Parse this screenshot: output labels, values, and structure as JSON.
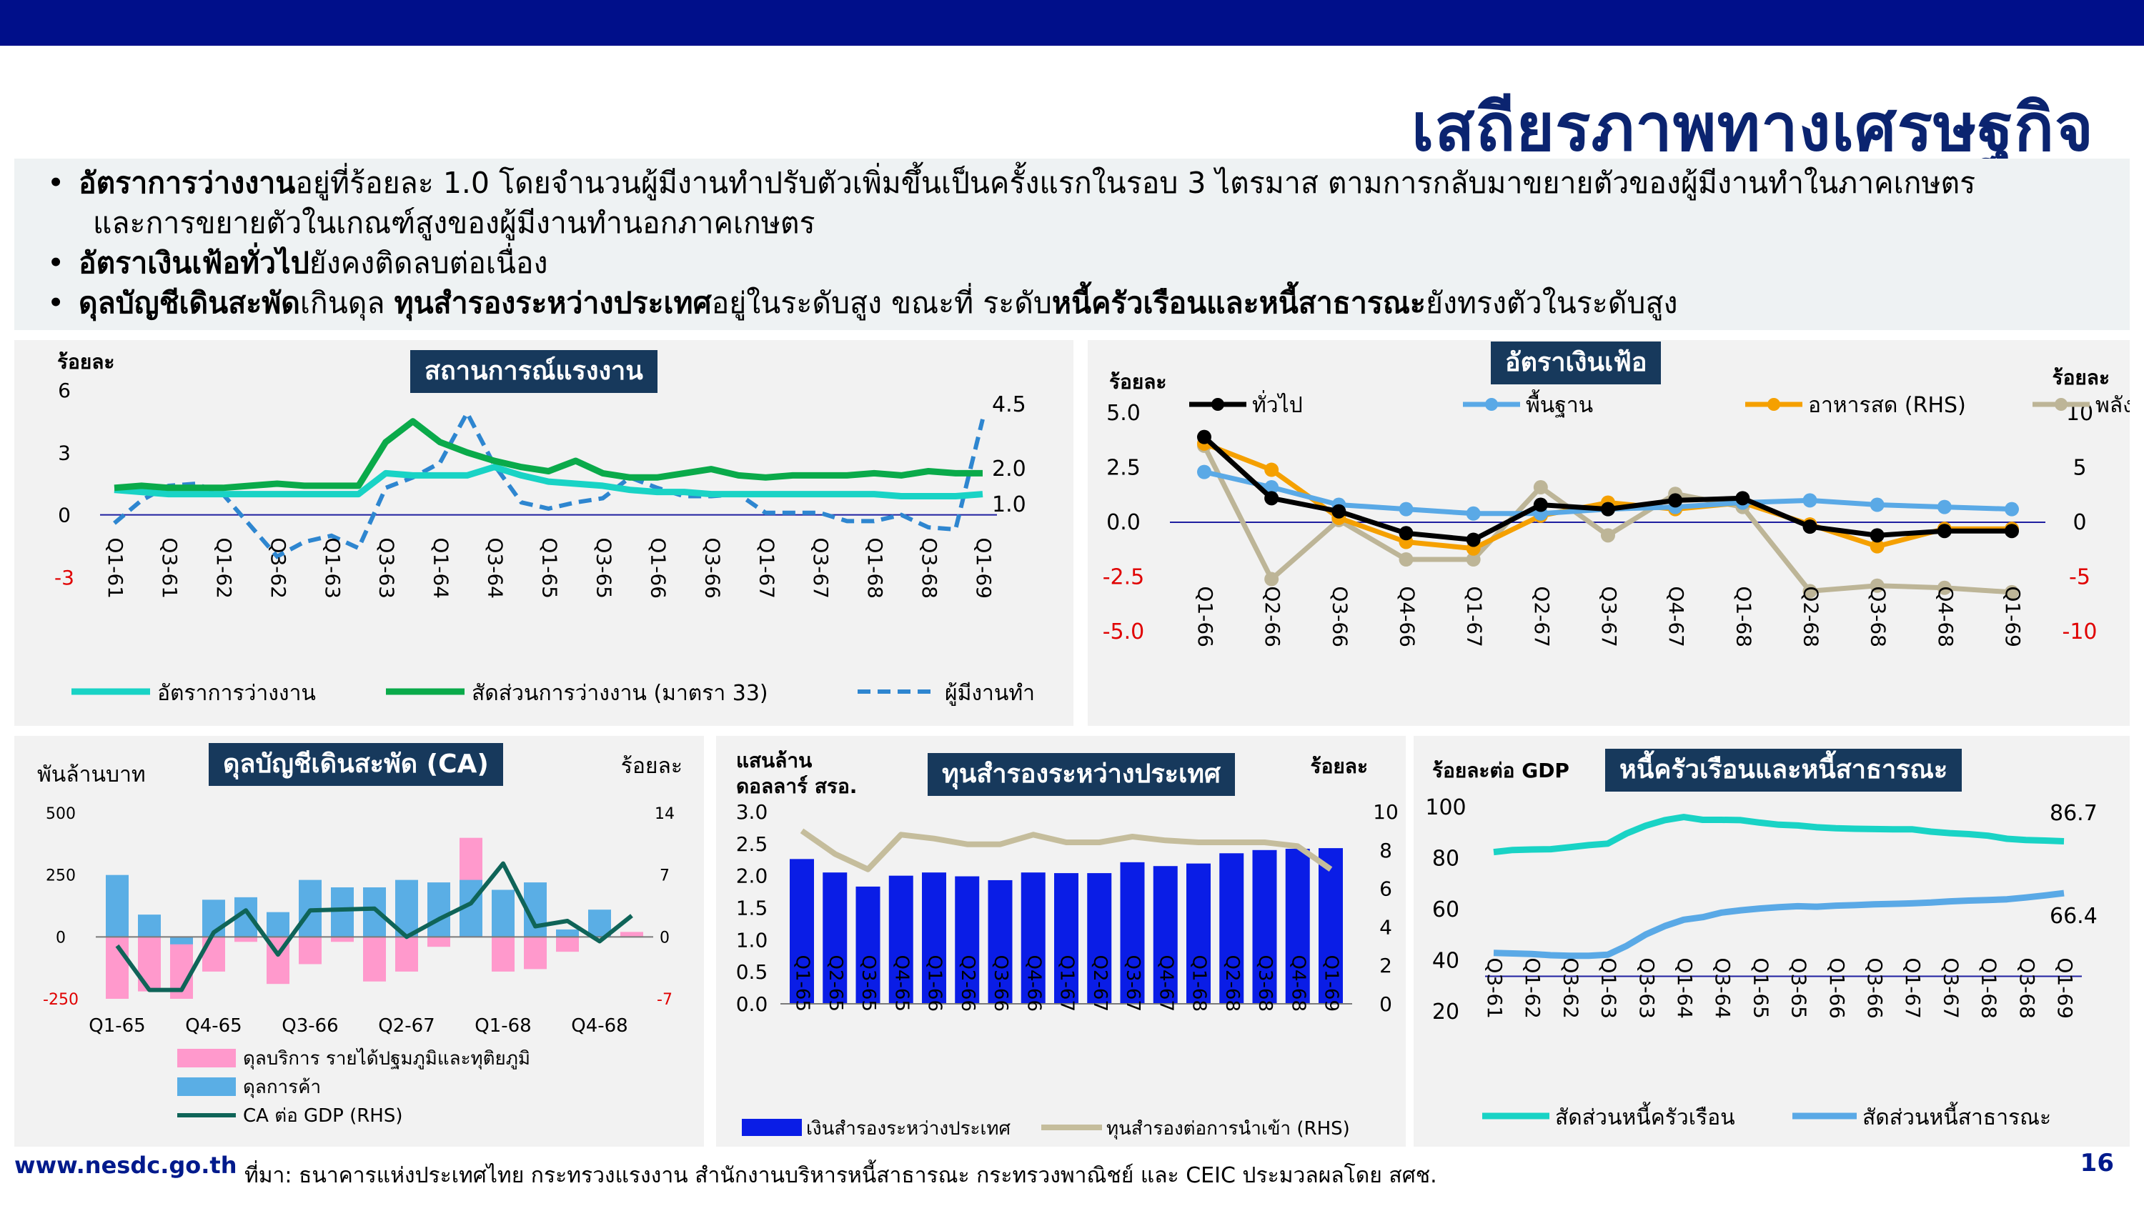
{
  "header": {
    "title": "เสถียรภาพทางเศรษฐกิจ"
  },
  "bullets": [
    {
      "bold": "อัตราการว่างงาน",
      "text": "อยู่ที่ร้อยละ 1.0 โดยจำนวนผู้มีงานทำปรับตัวเพิ่มขึ้นเป็นครั้งแรกในรอบ 3 ไตรมาส ตามการกลับมาขยายตัวของผู้มีงานทำในภาคเกษตร"
    },
    {
      "bold": "",
      "text": "และการขยายตัวในเกณฑ์สูงของผู้มีงานทำนอกภาคเกษตร"
    },
    {
      "bold": "อัตราเงินเฟ้อทั่วไป",
      "text": "ยังคงติดลบต่อเนื่อง"
    },
    {
      "b1": "ดุลบัญชีเดินสะพัด",
      "t1": "เกินดุล ",
      "b2": "ทุนสำรองระหว่างประเทศ",
      "t2": "อยู่ในระดับสูง ขณะที่ ระดับ",
      "b3": "หนี้ครัวเรือนและหนี้สาธารณะ",
      "t3": "ยังทรงตัวในระดับสูง"
    }
  ],
  "footer": {
    "url": "www.nesdc.go.th",
    "source": "ที่มา: ธนาคารแห่งประเทศไทย กระทรวงแรงงาน สำนักงานบริหารหนี้สาธารณะ กระทรวงพาณิชย์ และ CEIC  ประมวลผลโดย สศช.",
    "page": "16"
  },
  "chart_data": [
    {
      "type": "line",
      "title": "สถานการณ์แรงงาน",
      "ylabel": "ร้อยละ",
      "ylim": [
        -3,
        6
      ],
      "yticks": [
        "6",
        "3",
        "0",
        "-3"
      ],
      "x": [
        "Q1-61",
        "Q2-61",
        "Q3-61",
        "Q4-61",
        "Q1-62",
        "Q2-62",
        "Q3-62",
        "Q4-62",
        "Q1-63",
        "Q2-63",
        "Q3-63",
        "Q4-63",
        "Q1-64",
        "Q2-64",
        "Q3-64",
        "Q4-64",
        "Q1-65",
        "Q2-65",
        "Q3-65",
        "Q4-65",
        "Q1-66",
        "Q2-66",
        "Q3-66",
        "Q4-66",
        "Q1-67",
        "Q2-67",
        "Q3-67",
        "Q4-67",
        "Q1-68",
        "Q2-68",
        "Q3-68",
        "Q4-68",
        "Q1-69"
      ],
      "xticks": [
        "Q1-61",
        "Q3-61",
        "Q1-62",
        "Q3-62",
        "Q1-63",
        "Q3-63",
        "Q1-64",
        "Q3-64",
        "Q1-65",
        "Q3-65",
        "Q1-66",
        "Q3-66",
        "Q1-67",
        "Q3-67",
        "Q1-68",
        "Q3-68",
        "Q1-69"
      ],
      "series": [
        {
          "name": "อัตราการว่างงาน",
          "color": "#19d3c5",
          "values": [
            1.2,
            1.1,
            1.0,
            1.0,
            1.0,
            1.0,
            1.0,
            1.0,
            1.0,
            1.0,
            2.0,
            1.9,
            1.9,
            1.9,
            2.3,
            1.9,
            1.6,
            1.5,
            1.4,
            1.2,
            1.1,
            1.1,
            1.0,
            1.0,
            1.0,
            1.0,
            1.0,
            1.0,
            1.0,
            0.9,
            0.9,
            0.9,
            1.0
          ]
        },
        {
          "name": "สัดส่วนการว่างงาน (มาตรา 33)",
          "color": "#0aaa4a",
          "values": [
            1.3,
            1.4,
            1.3,
            1.3,
            1.3,
            1.4,
            1.5,
            1.4,
            1.4,
            1.4,
            3.5,
            4.5,
            3.5,
            3.0,
            2.6,
            2.3,
            2.1,
            2.6,
            2.0,
            1.8,
            1.8,
            2.0,
            2.2,
            1.9,
            1.8,
            1.9,
            1.9,
            1.9,
            2.0,
            1.9,
            2.1,
            2.0,
            2.0
          ]
        }
      ],
      "rhs_series": {
        "name": "ผู้มีงานทำ",
        "color": "#2e86d0",
        "labels": [
          "4.5",
          "2.0",
          "1.0"
        ],
        "values": [
          -0.4,
          0.7,
          1.4,
          1.5,
          1.0,
          -0.5,
          -2.0,
          -1.3,
          -1.0,
          -1.6,
          1.3,
          1.8,
          2.5,
          4.9,
          2.4,
          0.6,
          0.3,
          0.6,
          0.8,
          1.8,
          1.3,
          0.9,
          0.9,
          1.0,
          0.1,
          0.1,
          0.1,
          -0.3,
          -0.3,
          0.0,
          -0.6,
          -0.7,
          4.6
        ]
      }
    },
    {
      "type": "line",
      "title": "อัตราเงินเฟ้อ",
      "ylabel": "ร้อยละ",
      "y2label": "ร้อยละ",
      "ylim": [
        -5,
        5
      ],
      "y2lim": [
        -10,
        10
      ],
      "yticks": [
        "5.0",
        "2.5",
        "0.0",
        "-2.5",
        "-5.0"
      ],
      "y2ticks": [
        "10",
        "5",
        "0",
        "-5",
        "-10"
      ],
      "x": [
        "Q1-66",
        "Q2-66",
        "Q3-66",
        "Q4-66",
        "Q1-67",
        "Q2-67",
        "Q3-67",
        "Q4-67",
        "Q1-68",
        "Q2-68",
        "Q3-68",
        "Q4-68",
        "Q1-69"
      ],
      "series": [
        {
          "name": "ทั่วไป",
          "color": "#000000",
          "values": [
            3.9,
            1.1,
            0.5,
            -0.5,
            -0.8,
            0.8,
            0.6,
            1.0,
            1.1,
            -0.2,
            -0.6,
            -0.4,
            -0.4
          ]
        },
        {
          "name": "พื้นฐาน",
          "color": "#5aa9e6",
          "values": [
            2.3,
            1.6,
            0.8,
            0.6,
            0.4,
            0.4,
            0.6,
            0.7,
            0.9,
            1.0,
            0.8,
            0.7,
            0.6
          ]
        },
        {
          "name": "อาหารสด (RHS)",
          "color": "#f5a000",
          "axis": "rhs",
          "values": [
            7.2,
            4.8,
            0.4,
            -1.8,
            -2.4,
            0.6,
            1.8,
            1.2,
            1.8,
            -0.2,
            -2.2,
            -0.6,
            -0.6
          ]
        },
        {
          "name": "พลังงาน (RHS)",
          "color": "#bdb597",
          "axis": "rhs",
          "values": [
            7.0,
            -5.2,
            0.2,
            -3.4,
            -3.4,
            3.2,
            -1.2,
            2.6,
            1.4,
            -6.3,
            -5.8,
            -6.0,
            -6.4
          ]
        }
      ]
    },
    {
      "type": "bar",
      "title": "ดุลบัญชีเดินสะพัด (CA)",
      "ylabel": "พันล้านบาท",
      "y2label": "ร้อยละ",
      "ylim": [
        -250,
        500
      ],
      "y2lim": [
        -7,
        14
      ],
      "yticks": [
        "500",
        "250",
        "0",
        "-250"
      ],
      "y2ticks": [
        "14",
        "7",
        "0",
        "-7"
      ],
      "x": [
        "Q1-65",
        "Q2-65",
        "Q3-65",
        "Q4-65",
        "Q1-66",
        "Q2-66",
        "Q3-66",
        "Q4-66",
        "Q1-67",
        "Q2-67",
        "Q3-67",
        "Q4-67",
        "Q1-68",
        "Q2-68",
        "Q3-68",
        "Q4-68",
        "Q1-69"
      ],
      "xticks": [
        "Q1-65",
        "Q4-65",
        "Q3-66",
        "Q2-67",
        "Q1-68",
        "Q4-68"
      ],
      "series": [
        {
          "name": "ดุลบริการ รายได้ปฐมภูมิและทุติยภูมิ",
          "color": "#ff99cc",
          "values": [
            -250,
            -220,
            -250,
            -140,
            -20,
            -190,
            -110,
            -20,
            -180,
            -140,
            -40,
            400,
            -140,
            -130,
            -60,
            10,
            20
          ]
        },
        {
          "name": "ดุลการค้า",
          "color": "#5aaee5",
          "values": [
            250,
            90,
            -30,
            150,
            160,
            100,
            230,
            200,
            200,
            230,
            220,
            230,
            190,
            220,
            30,
            110,
            0
          ]
        },
        {
          "name": "CA ต่อ GDP (RHS)",
          "color": "#0f6458",
          "type": "line",
          "values": [
            -1.0,
            -6.0,
            -6.0,
            0.5,
            3.0,
            -2.0,
            3.0,
            3.1,
            3.2,
            0.0,
            2.0,
            3.8,
            8.3,
            1.2,
            1.8,
            -0.5,
            2.4
          ]
        }
      ]
    },
    {
      "type": "bar",
      "title": "ทุนสำรองระหว่างประเทศ",
      "ylabel": "แสนล้าน ดอลลาร์ สรอ.",
      "y2label": "ร้อยละ",
      "ylim": [
        0,
        3
      ],
      "y2lim": [
        0,
        10
      ],
      "yticks": [
        "3.0",
        "2.5",
        "2.0",
        "1.5",
        "1.0",
        "0.5",
        "0.0"
      ],
      "y2ticks": [
        "10",
        "8",
        "6",
        "4",
        "2",
        "0"
      ],
      "x": [
        "Q1-65",
        "Q2-65",
        "Q3-65",
        "Q4-65",
        "Q1-66",
        "Q2-66",
        "Q3-66",
        "Q4-66",
        "Q1-67",
        "Q2-67",
        "Q3-67",
        "Q4-67",
        "Q1-68",
        "Q2-68",
        "Q3-68",
        "Q4-68",
        "Q1-69"
      ],
      "series": [
        {
          "name": "เงินสำรองระหว่างประเทศ",
          "color": "#0a1de6",
          "values": [
            2.26,
            2.05,
            1.83,
            2.0,
            2.05,
            1.99,
            1.93,
            2.05,
            2.04,
            2.04,
            2.21,
            2.15,
            2.19,
            2.35,
            2.4,
            2.42,
            2.43
          ]
        },
        {
          "name": "ทุนสำรองต่อการนำเข้า (RHS)",
          "color": "#c5bd9c",
          "type": "line",
          "values": [
            9.0,
            7.8,
            7.0,
            8.8,
            8.6,
            8.3,
            8.3,
            8.8,
            8.4,
            8.4,
            8.7,
            8.5,
            8.4,
            8.4,
            8.4,
            8.2,
            7.0
          ]
        }
      ]
    },
    {
      "type": "line",
      "title": "หนี้ครัวเรือนและหนี้สาธารณะ",
      "ylabel": "ร้อยละต่อ GDP",
      "ylim": [
        20,
        100
      ],
      "yticks": [
        "100",
        "80",
        "60",
        "40",
        "20"
      ],
      "x": [
        "Q3-61",
        "Q4-61",
        "Q1-62",
        "Q2-62",
        "Q3-62",
        "Q4-62",
        "Q1-63",
        "Q2-63",
        "Q3-63",
        "Q4-63",
        "Q1-64",
        "Q2-64",
        "Q3-64",
        "Q4-64",
        "Q1-65",
        "Q2-65",
        "Q3-65",
        "Q4-65",
        "Q1-66",
        "Q2-66",
        "Q3-66",
        "Q4-66",
        "Q1-67",
        "Q2-67",
        "Q3-67",
        "Q4-67",
        "Q1-68",
        "Q2-68",
        "Q3-68",
        "Q4-68",
        "Q1-69"
      ],
      "xticks": [
        "Q3-61",
        "Q1-62",
        "Q3-62",
        "Q1-63",
        "Q3-63",
        "Q1-64",
        "Q3-64",
        "Q1-65",
        "Q3-65",
        "Q1-66",
        "Q3-66",
        "Q1-67",
        "Q3-67",
        "Q1-68",
        "Q3-68",
        "Q1-69"
      ],
      "series": [
        {
          "name": "สัดส่วนหนี้ครัวเรือน",
          "color": "#19d3c5",
          "label": "86.7",
          "values": [
            82.5,
            83.3,
            83.5,
            83.6,
            84.4,
            85.2,
            85.8,
            89.8,
            92.8,
            95.0,
            96.2,
            95.1,
            95.1,
            95.0,
            94.0,
            93.2,
            92.9,
            92.2,
            91.8,
            91.6,
            91.5,
            91.4,
            91.4,
            90.5,
            89.9,
            89.5,
            88.9,
            87.7,
            87.2,
            87.0,
            86.7
          ]
        },
        {
          "name": "สัดส่วนหนี้สาธารณะ",
          "color": "#5aa9e6",
          "label": "66.4",
          "values": [
            43.0,
            42.8,
            42.6,
            42.1,
            41.9,
            41.9,
            42.3,
            45.8,
            50.2,
            53.5,
            56.0,
            57.0,
            58.8,
            59.7,
            60.4,
            60.9,
            61.3,
            61.1,
            61.5,
            61.7,
            62.0,
            62.2,
            62.4,
            62.7,
            63.2,
            63.5,
            63.7,
            64.0,
            64.7,
            65.5,
            66.4
          ]
        }
      ]
    }
  ]
}
